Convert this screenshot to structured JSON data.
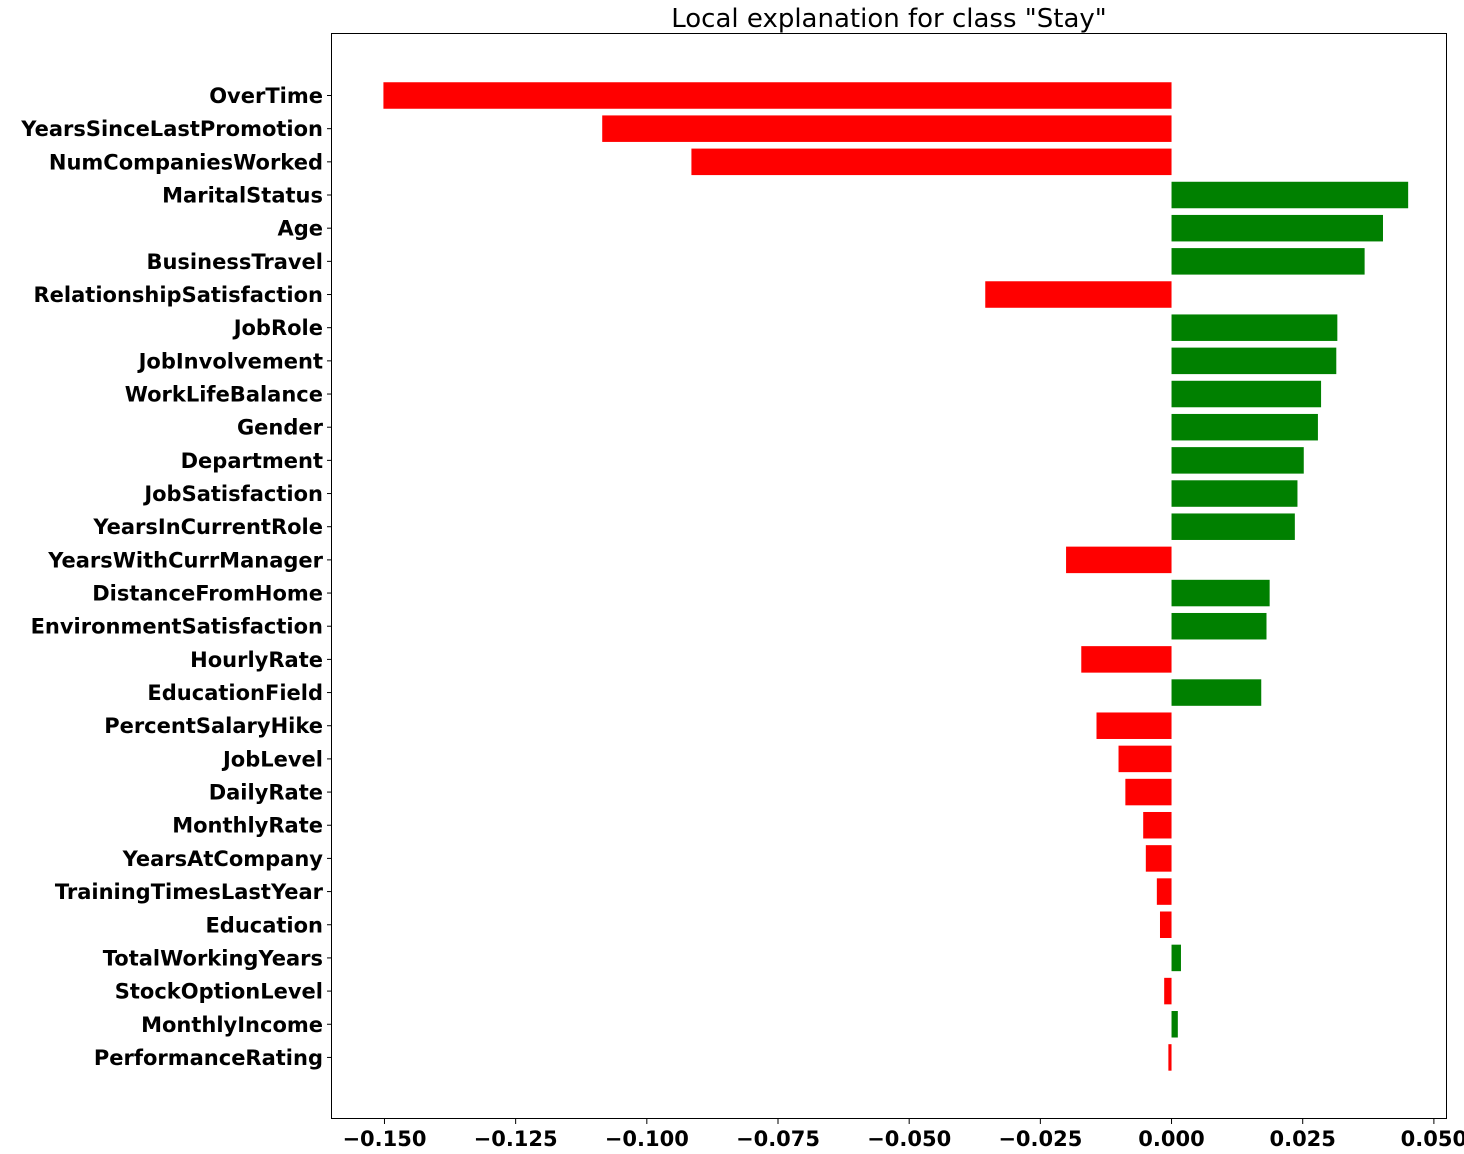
{
  "chart_data": {
    "type": "bar",
    "orientation": "horizontal",
    "title": "Local explanation for class \"Stay\"",
    "xlabel": "",
    "ylabel": "",
    "xlim": [
      -0.16,
      0.0525
    ],
    "grid": false,
    "x_ticks": [
      -0.15,
      -0.125,
      -0.1,
      -0.075,
      -0.05,
      -0.025,
      0.0,
      0.025,
      0.05
    ],
    "x_tick_labels": [
      "−0.150",
      "−0.125",
      "−0.100",
      "−0.075",
      "−0.050",
      "−0.025",
      "0.000",
      "0.025",
      "0.050"
    ],
    "categories": [
      "OverTime",
      "YearsSinceLastPromotion",
      "NumCompaniesWorked",
      "MaritalStatus",
      "Age",
      "BusinessTravel",
      "RelationshipSatisfaction",
      "JobRole",
      "JobInvolvement",
      "WorkLifeBalance",
      "Gender",
      "Department",
      "JobSatisfaction",
      "YearsInCurrentRole",
      "YearsWithCurrManager",
      "DistanceFromHome",
      "EnvironmentSatisfaction",
      "HourlyRate",
      "EducationField",
      "PercentSalaryHike",
      "JobLevel",
      "DailyRate",
      "MonthlyRate",
      "YearsAtCompany",
      "TrainingTimesLastYear",
      "Education",
      "TotalWorkingYears",
      "StockOptionLevel",
      "MonthlyIncome",
      "PerformanceRating"
    ],
    "values": [
      -0.1502,
      -0.1085,
      -0.0915,
      0.0451,
      0.0403,
      0.0368,
      -0.0355,
      0.0316,
      0.0314,
      0.0285,
      0.0279,
      0.0252,
      0.024,
      0.0235,
      -0.0201,
      0.0187,
      0.0181,
      -0.0172,
      0.0171,
      -0.0143,
      -0.0101,
      -0.0088,
      -0.0054,
      -0.0049,
      -0.0028,
      -0.0022,
      0.0018,
      -0.0014,
      0.0012,
      -0.0006
    ],
    "colors": {
      "positive": "#008000",
      "negative": "#ff0000",
      "axis": "#000000"
    }
  }
}
